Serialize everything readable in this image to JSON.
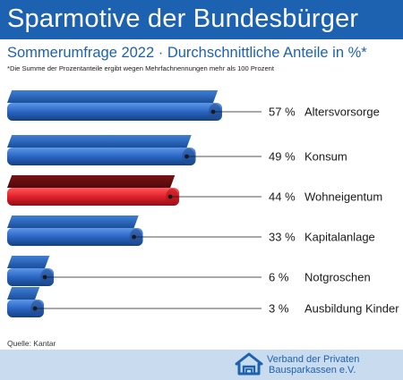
{
  "header": {
    "title": "Sparmotive der Bundesbürger",
    "subtitle": "Sommerumfrage 2022 · Durchschnittliche Anteile in %*",
    "footnote": "*Die Summe der Prozentanteile ergibt wegen Mehrfachnennungen mehr als 100 Prozent"
  },
  "chart_data": {
    "type": "bar",
    "title": "Sparmotive der Bundesbürger",
    "subtitle": "Sommerumfrage 2022 · Durchschnittliche Anteile in %*",
    "categories": [
      "Altersvorsorge",
      "Konsum",
      "Wohneigentum",
      "Kapitalanlage",
      "Notgroschen",
      "Ausbildung Kinder"
    ],
    "values": [
      57,
      49,
      44,
      33,
      6,
      3
    ],
    "value_labels": [
      "57 %",
      "49 %",
      "44 %",
      "33 %",
      "6 %",
      "3 %"
    ],
    "orientation": "horizontal",
    "highlight_category": "Wohneigentum",
    "colors": {
      "bar": "#2f6ec9",
      "highlight": "#e0202c"
    },
    "grid": false,
    "legend": "none"
  },
  "footer": {
    "source": "Quelle: Kantar",
    "org_line1": "Verband der Privaten",
    "org_line2": "Bausparkassen e.V.",
    "logo_icon": "house-logo-icon"
  }
}
